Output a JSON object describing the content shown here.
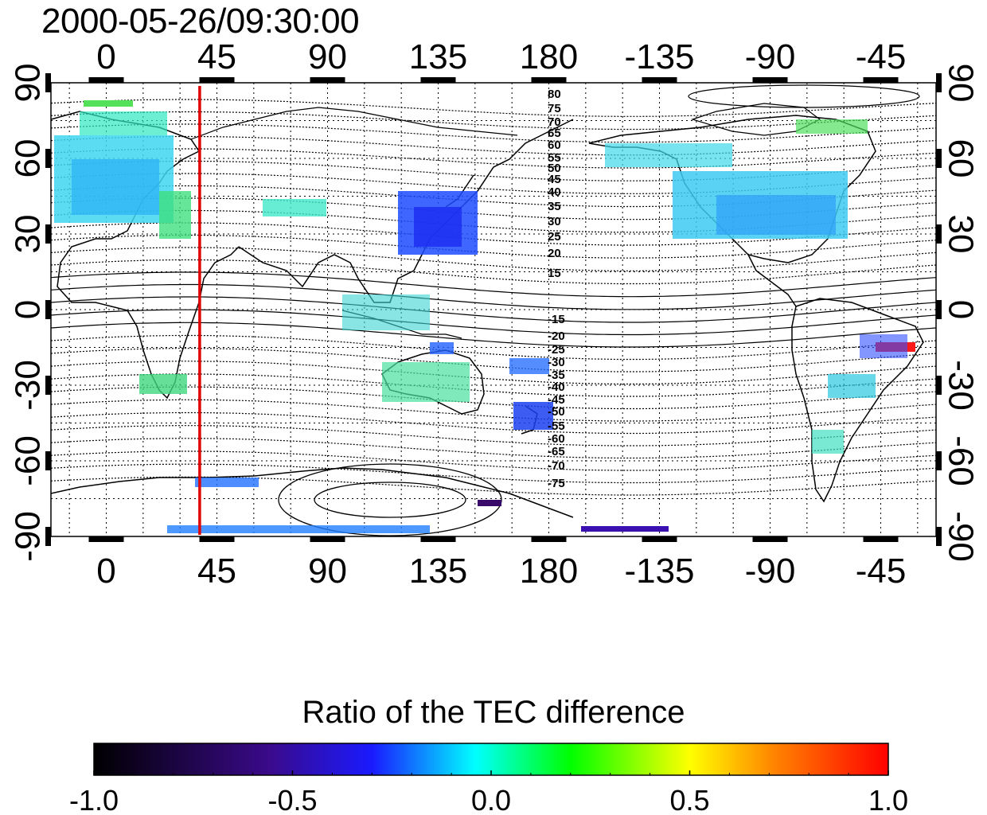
{
  "timestamp": "2000-05-26/09:30:00",
  "map": {
    "lon_ticks": [
      "0",
      "45",
      "90",
      "135",
      "180",
      "-135",
      "-90",
      "-45"
    ],
    "lat_ticks_left": [
      "90",
      "60",
      "30",
      "0",
      "-30",
      "-60",
      "-90"
    ],
    "lat_ticks_right": [
      "90",
      "60",
      "30",
      "0",
      "-30",
      "-60",
      "-90"
    ],
    "contour_labels_north": [
      "80",
      "75",
      "70",
      "65",
      "60",
      "55",
      "50",
      "45",
      "40",
      "35",
      "30",
      "25",
      "20",
      "15"
    ],
    "contour_labels_south": [
      "-15",
      "-20",
      "-25",
      "-30",
      "-35",
      "-40",
      "-45",
      "-50",
      "-55",
      "-60",
      "-65",
      "-70",
      "-75"
    ],
    "marker_line_color": "#e00000",
    "marker_longitude": 38
  },
  "colorbar": {
    "title": "Ratio of the TEC difference",
    "tick_labels": [
      "-1.0",
      "-0.5",
      "0.0",
      "0.5",
      "1.0"
    ],
    "stops": [
      "#000000",
      "#3a0a8a",
      "#1a1aff",
      "#00ffff",
      "#00ff00",
      "#ffff00",
      "#ff8000",
      "#ff0000"
    ]
  },
  "colors": {
    "frame": "#000000",
    "grid": "#000000",
    "coast": "#000000"
  }
}
